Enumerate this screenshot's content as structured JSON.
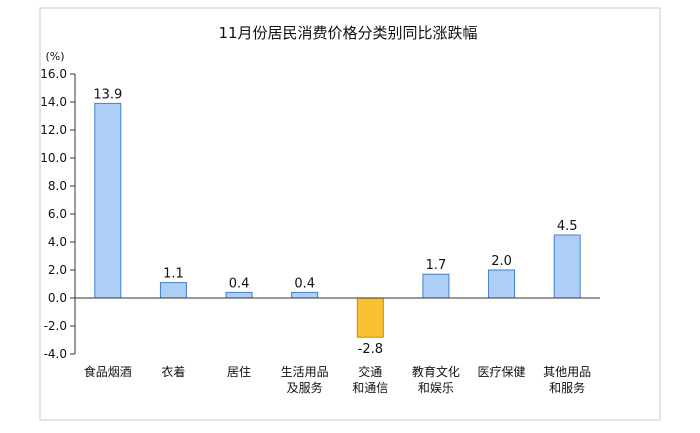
{
  "chart_data": {
    "type": "bar",
    "title": "11月份居民消费价格分类别同比涨跌幅",
    "unit_label": "(%)",
    "ylim": [
      -4.0,
      16.0
    ],
    "yticks": [
      "16.0",
      "14.0",
      "12.0",
      "10.0",
      "8.0",
      "6.0",
      "4.0",
      "2.0",
      "0.0",
      "-2.0",
      "-4.0"
    ],
    "ytick_values": [
      16,
      14,
      12,
      10,
      8,
      6,
      4,
      2,
      0,
      -2,
      -4
    ],
    "grid": false,
    "categories": [
      [
        "食品烟酒"
      ],
      [
        "衣着"
      ],
      [
        "居住"
      ],
      [
        "生活用品",
        "及服务"
      ],
      [
        "交通",
        "和通信"
      ],
      [
        "教育文化",
        "和娱乐"
      ],
      [
        "医疗保健"
      ],
      [
        "其他用品",
        "和服务"
      ]
    ],
    "values": [
      13.9,
      1.1,
      0.4,
      0.4,
      -2.8,
      1.7,
      2.0,
      4.5
    ],
    "value_labels": [
      "13.9",
      "1.1",
      "0.4",
      "0.4",
      "-2.8",
      "1.7",
      "2.0",
      "4.5"
    ],
    "colors": {
      "positive_fill": "#aecff5",
      "positive_stroke": "#3f7fd0",
      "negative_fill": "#f9c232",
      "negative_stroke": "#c68b00",
      "axis": "#333333",
      "border": "#b0b0b0"
    }
  }
}
